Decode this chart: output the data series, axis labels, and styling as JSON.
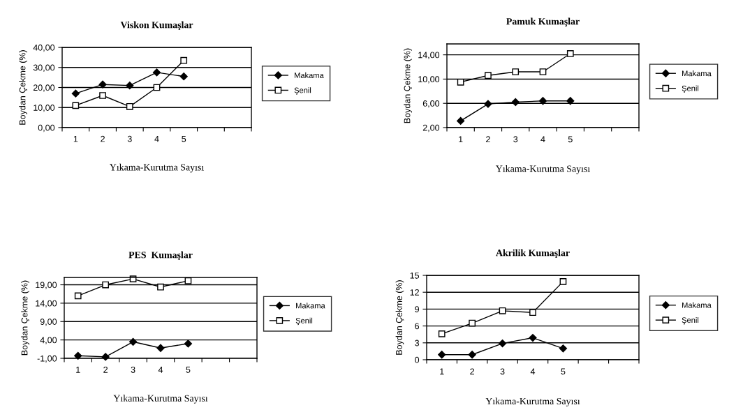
{
  "chart_data": [
    {
      "type": "line",
      "title": "Viskon Kumaşlar",
      "xlabel": "Yıkama-Kurutma Sayısı",
      "ylabel": "Boydan Çekme (%)",
      "categories": [
        "1",
        "2",
        "3",
        "4",
        "5",
        null,
        null
      ],
      "ylim": [
        0,
        40
      ],
      "yticks": [
        {
          "value": 0,
          "label": "0,00"
        },
        {
          "value": 10,
          "label": "10,00"
        },
        {
          "value": 20,
          "label": "20,00"
        },
        {
          "value": 30,
          "label": "30,00"
        },
        {
          "value": 40,
          "label": "40,00"
        }
      ],
      "grid": "y",
      "legend": "right",
      "series": [
        {
          "name": "Makama",
          "color": "#000000",
          "marker": "diamond",
          "values": [
            17,
            21.5,
            21,
            27.5,
            25.5,
            null,
            null
          ]
        },
        {
          "name": "Şenil",
          "color": "#000000",
          "marker": "square",
          "values": [
            11,
            16,
            10.5,
            20,
            33.5,
            null,
            null
          ]
        }
      ]
    },
    {
      "type": "line",
      "title": "Pamuk Kumaşlar",
      "xlabel": "Yıkama-Kurutma Sayısı",
      "ylabel": "Boydan Çekme (%)",
      "categories": [
        "1",
        "2",
        "3",
        "4",
        "5",
        null,
        null
      ],
      "ylim": [
        2,
        15.8
      ],
      "yticks": [
        {
          "value": 2,
          "label": "2,00"
        },
        {
          "value": 6,
          "label": "6,00"
        },
        {
          "value": 10,
          "label": "10,00"
        },
        {
          "value": 14,
          "label": "14,00"
        }
      ],
      "grid": "y",
      "legend": "right",
      "series": [
        {
          "name": "Makama",
          "color": "#000000",
          "marker": "diamond",
          "values": [
            3.1,
            5.9,
            6.2,
            6.4,
            6.4,
            null,
            null
          ]
        },
        {
          "name": "Şenil",
          "color": "#000000",
          "marker": "square",
          "values": [
            9.5,
            10.6,
            11.2,
            11.2,
            14.2,
            null,
            null
          ]
        }
      ]
    },
    {
      "type": "line",
      "title": "PES  Kumaşlar",
      "xlabel": "Yıkama-Kurutma Sayısı",
      "ylabel": "Boydan Çekme (%)",
      "categories": [
        "1",
        "2",
        "3",
        "4",
        "5",
        null,
        null
      ],
      "ylim": [
        -1,
        21
      ],
      "yticks": [
        {
          "value": -1,
          "label": "-1,00"
        },
        {
          "value": 4,
          "label": "4,00"
        },
        {
          "value": 9,
          "label": "9,00"
        },
        {
          "value": 14,
          "label": "14,00"
        },
        {
          "value": 19,
          "label": "19,00"
        }
      ],
      "grid": "y",
      "legend": "right",
      "series": [
        {
          "name": "Makama",
          "color": "#000000",
          "marker": "diamond",
          "values": [
            -0.3,
            -0.6,
            3.5,
            1.8,
            3.0,
            null,
            null
          ]
        },
        {
          "name": "Şenil",
          "color": "#000000",
          "marker": "square",
          "values": [
            16.0,
            19.0,
            20.6,
            18.4,
            20.1,
            null,
            null
          ]
        }
      ]
    },
    {
      "type": "line",
      "title": "Akrilik Kumaşlar",
      "xlabel": "Yıkama-Kurutma Sayısı",
      "ylabel": "Boydan Çekme (%)",
      "categories": [
        "1",
        "2",
        "3",
        "4",
        "5",
        null,
        null
      ],
      "ylim": [
        0,
        15
      ],
      "yticks": [
        0,
        3,
        6,
        9,
        12,
        15
      ],
      "grid": "y",
      "legend": "right",
      "series": [
        {
          "name": "Makama",
          "color": "#000000",
          "marker": "diamond",
          "values": [
            0.9,
            0.9,
            2.9,
            3.9,
            2.0,
            null,
            null
          ]
        },
        {
          "name": "Şenil",
          "color": "#000000",
          "marker": "square",
          "values": [
            4.6,
            6.5,
            8.7,
            8.4,
            13.9,
            null,
            null
          ]
        }
      ]
    }
  ]
}
